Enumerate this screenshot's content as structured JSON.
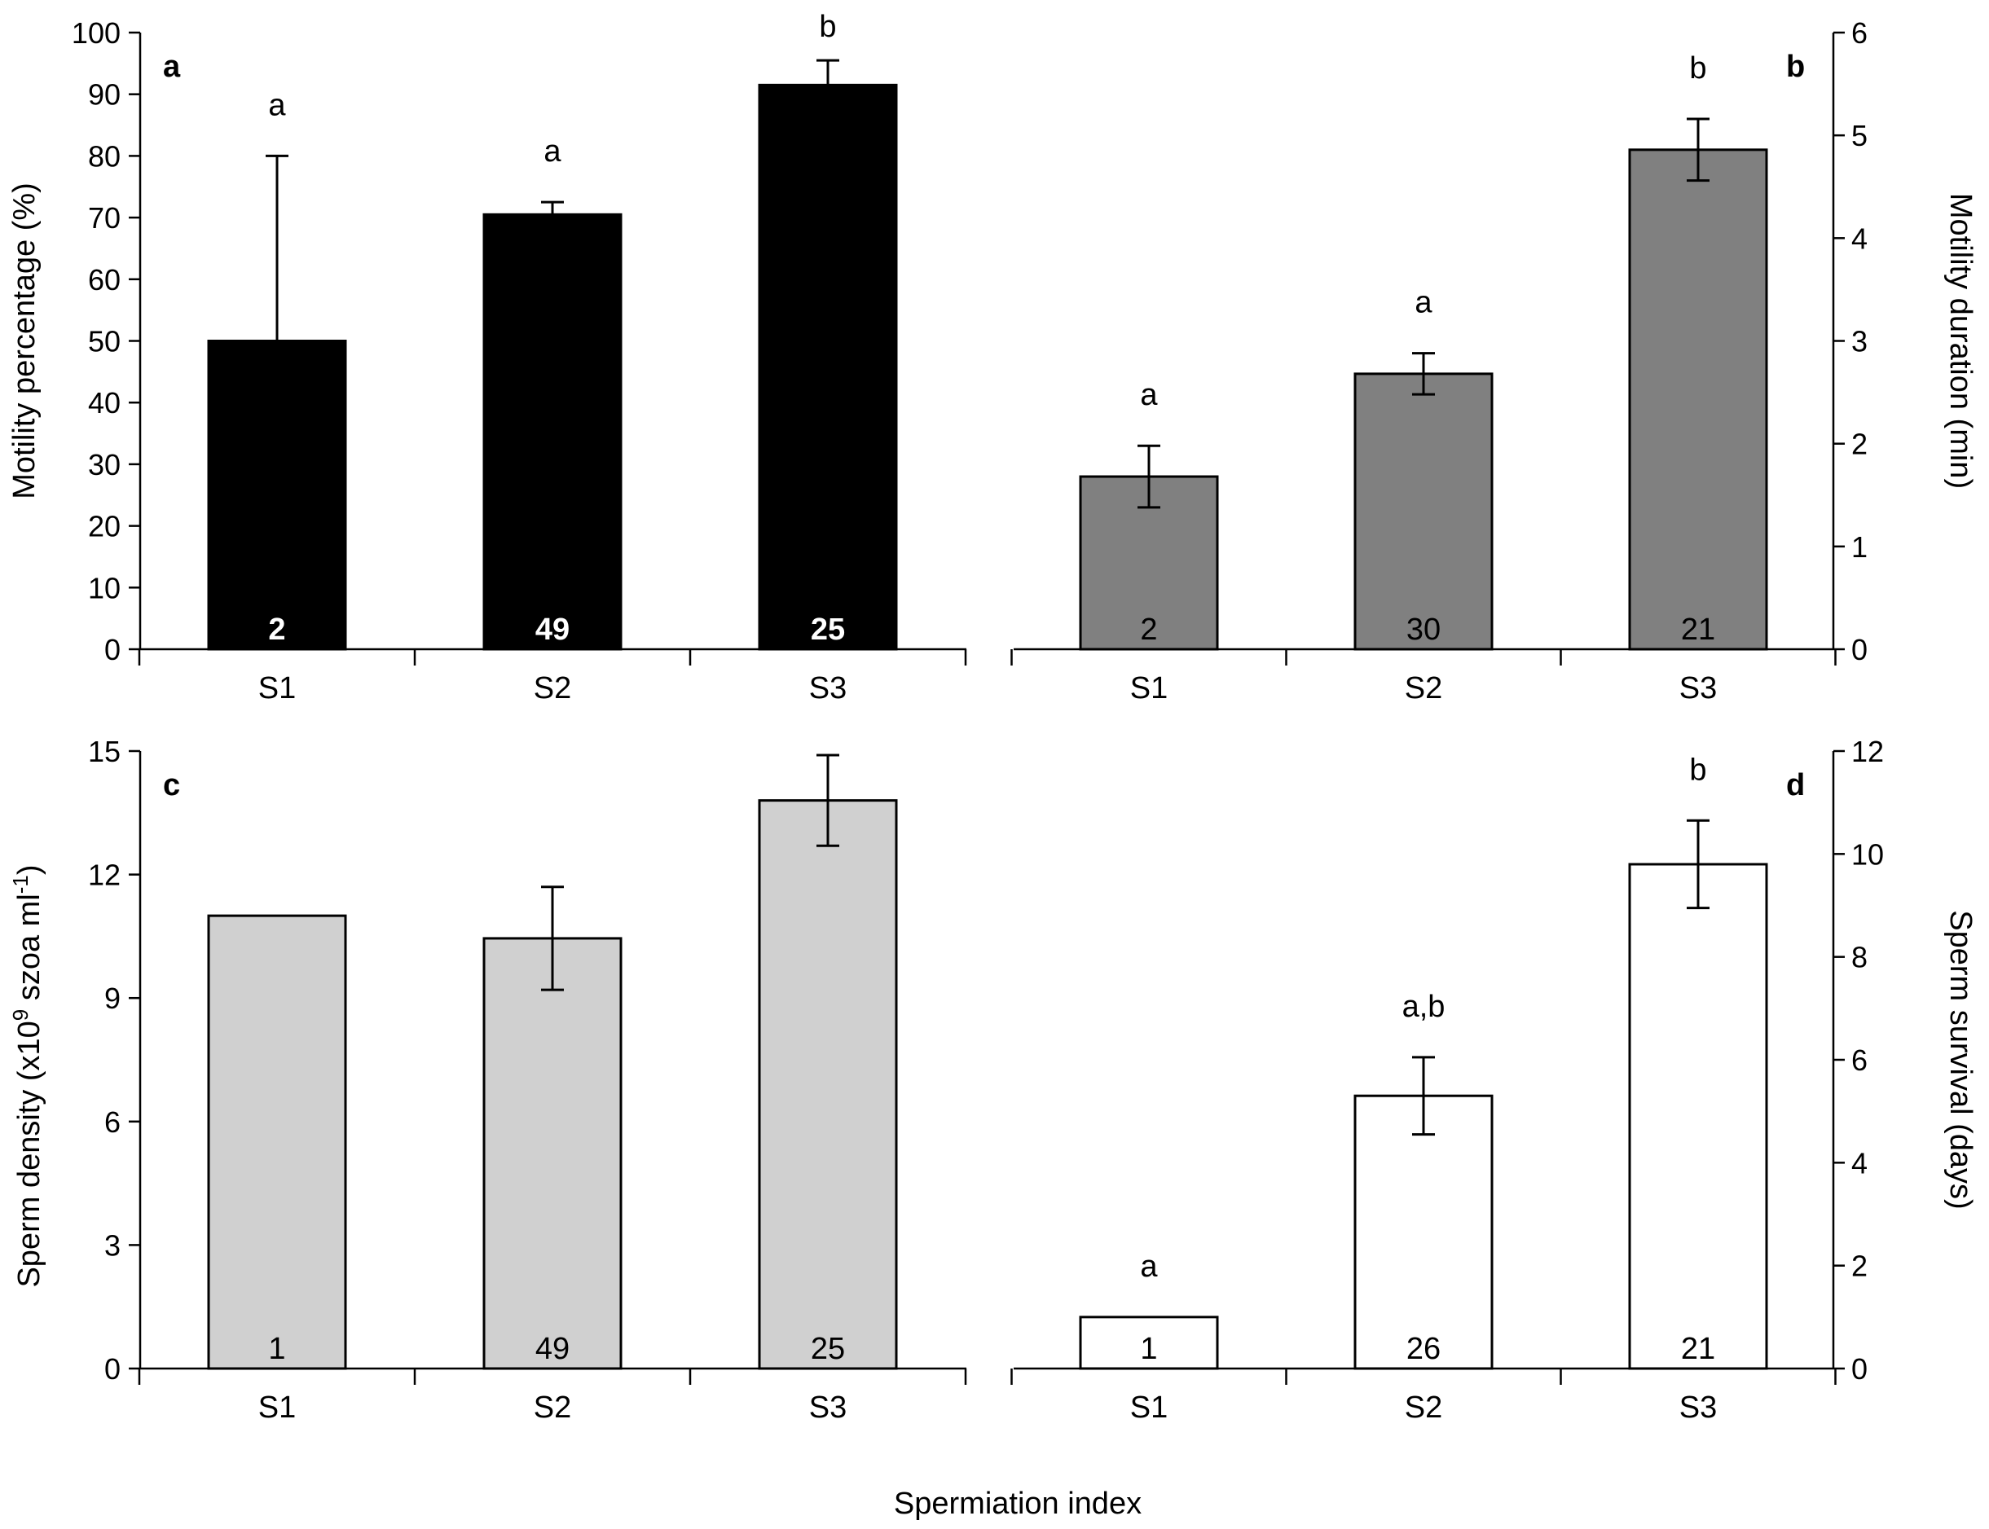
{
  "figure": {
    "xlabel": "Spermiation index"
  },
  "chart_data": [
    {
      "type": "bar",
      "panel": "a",
      "categories": [
        "S1",
        "S2",
        "S3"
      ],
      "values": [
        50,
        70.5,
        91.5
      ],
      "errors": [
        30,
        2,
        4
      ],
      "error_style": "upper",
      "sig_letters": [
        "a",
        "a",
        "b"
      ],
      "n_labels": [
        "2",
        "49",
        "25"
      ],
      "ylabel": "Motility percentage (%)",
      "ylim": [
        0,
        100
      ],
      "yticks": [
        "0",
        "10",
        "20",
        "30",
        "40",
        "50",
        "60",
        "70",
        "80",
        "90",
        "100"
      ],
      "axis_side": "left",
      "bar_color": "#000000",
      "n_label_color": "#ffffff"
    },
    {
      "type": "bar",
      "panel": "b",
      "categories": [
        "S1",
        "S2",
        "S3"
      ],
      "values": [
        1.68,
        2.68,
        4.86
      ],
      "errors": [
        0.3,
        0.2,
        0.3
      ],
      "error_style": "both",
      "sig_letters": [
        "a",
        "a",
        "b"
      ],
      "n_labels": [
        "2",
        "30",
        "21"
      ],
      "ylabel": "Motility duration (min)",
      "ylim": [
        0,
        6
      ],
      "yticks": [
        "0",
        "1",
        "2",
        "3",
        "4",
        "5",
        "6"
      ],
      "axis_side": "right",
      "bar_color": "#808080",
      "n_label_color": "#000000"
    },
    {
      "type": "bar",
      "panel": "c",
      "categories": [
        "S1",
        "S2",
        "S3"
      ],
      "values": [
        11.0,
        10.45,
        13.8
      ],
      "errors": [
        null,
        1.25,
        1.1
      ],
      "error_style": "both",
      "sig_letters": [],
      "n_labels": [
        "1",
        "49",
        "25"
      ],
      "ylabel": "Sperm density (x10",
      "ylabel_sup1": "9",
      "ylabel_mid": " szoa ml",
      "ylabel_sup2": "-1",
      "ylabel_end": ")",
      "ylim": [
        0,
        15
      ],
      "yticks": [
        "0",
        "3",
        "6",
        "9",
        "12",
        "15"
      ],
      "axis_side": "left",
      "bar_color": "#d0d0d0",
      "n_label_color": "#000000"
    },
    {
      "type": "bar",
      "panel": "d",
      "categories": [
        "S1",
        "S2",
        "S3"
      ],
      "values": [
        1.0,
        5.3,
        9.8
      ],
      "errors": [
        null,
        0.75,
        0.85
      ],
      "error_style": "both",
      "sig_letters": [
        "a",
        "a,b",
        "b"
      ],
      "n_labels": [
        "1",
        "26",
        "21"
      ],
      "ylabel": "Sperm survival (days)",
      "ylim": [
        0,
        12
      ],
      "yticks": [
        "0",
        "2",
        "4",
        "6",
        "8",
        "10",
        "12"
      ],
      "axis_side": "right",
      "bar_color": "#ffffff",
      "n_label_color": "#000000"
    }
  ]
}
